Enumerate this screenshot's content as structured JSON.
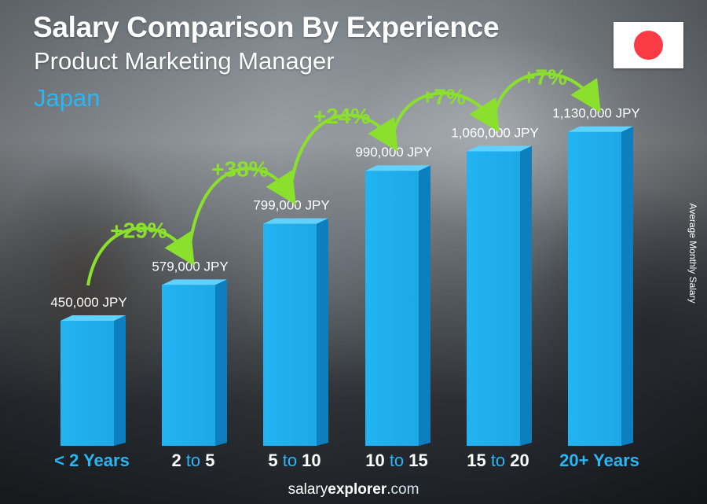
{
  "header": {
    "title": "Salary Comparison By Experience",
    "subtitle": "Product Marketing Manager",
    "country": "Japan"
  },
  "flag": {
    "country": "Japan",
    "field_color": "#ffffff",
    "disc_color": "#fa3a45"
  },
  "footer": {
    "brand": "salary",
    "brand_bold": "explorer",
    "tld": ".com"
  },
  "colors": {
    "bar_front": "#1ea7e8",
    "bar_side": "#0d7fbf",
    "bar_top": "#5fd2ff",
    "increase_green": "#8be02e",
    "category_blue": "#29b6f6",
    "category_white": "#ffffff"
  },
  "chart_data": {
    "type": "bar",
    "title": "Salary Comparison By Experience",
    "subtitle": "Product Marketing Manager",
    "ylabel": "Average Monthly Salary",
    "unit": "JPY",
    "ylim": [
      0,
      1200000
    ],
    "grid": false,
    "legend": "none",
    "categories": [
      "< 2 Years",
      "2 to 5",
      "5 to 10",
      "10 to 15",
      "15 to 20",
      "20+ Years"
    ],
    "category_parts": [
      [
        {
          "t": "< 2 Years",
          "c": "blue"
        }
      ],
      [
        {
          "t": "2",
          "c": "white"
        },
        {
          "t": " to ",
          "c": "blue"
        },
        {
          "t": "5",
          "c": "white"
        }
      ],
      [
        {
          "t": "5",
          "c": "white"
        },
        {
          "t": " to ",
          "c": "blue"
        },
        {
          "t": "10",
          "c": "white"
        }
      ],
      [
        {
          "t": "10",
          "c": "white"
        },
        {
          "t": " to ",
          "c": "blue"
        },
        {
          "t": "15",
          "c": "white"
        }
      ],
      [
        {
          "t": "15",
          "c": "white"
        },
        {
          "t": " to ",
          "c": "blue"
        },
        {
          "t": "20",
          "c": "white"
        }
      ],
      [
        {
          "t": "20+ Years",
          "c": "blue"
        }
      ]
    ],
    "values": [
      450000,
      579000,
      799000,
      990000,
      1060000,
      1130000
    ],
    "value_labels": [
      "450,000 JPY",
      "579,000 JPY",
      "799,000 JPY",
      "990,000 JPY",
      "1,060,000 JPY",
      "1,130,000 JPY"
    ],
    "increases": [
      "+29%",
      "+38%",
      "+24%",
      "+7%",
      "+7%"
    ]
  }
}
